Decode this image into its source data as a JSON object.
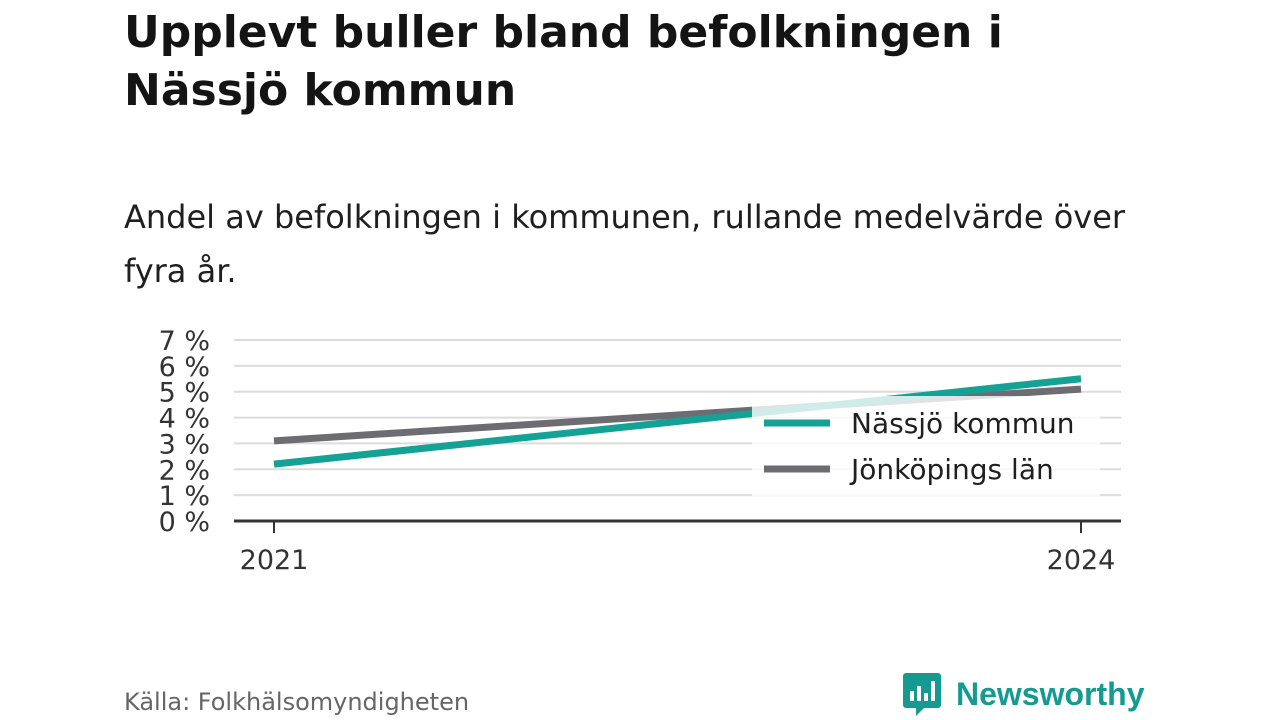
{
  "title": "Upplevt buller bland befolkningen i Nässjö kommun",
  "subtitle": "Andel av befolkningen i kommunen, rullande medelvärde över fyra år.",
  "source": "Källa: Folkhälsomyndigheten",
  "brand": {
    "name": "Newsworthy",
    "icon": "newsworthy-logo-icon",
    "color": "#159a92"
  },
  "chart_data": {
    "type": "line",
    "x": [
      2021,
      2024
    ],
    "xticks": [
      "2021",
      "2024"
    ],
    "ylim": [
      0,
      7
    ],
    "yticks": [
      "0 %",
      "1 %",
      "2 %",
      "3 %",
      "4 %",
      "5 %",
      "6 %",
      "7 %"
    ],
    "grid": true,
    "legend_position": "bottom-right",
    "series": [
      {
        "name": "Nässjö kommun",
        "values": [
          2.2,
          5.5
        ],
        "color": "#14a196"
      },
      {
        "name": "Jönköpings län",
        "values": [
          3.1,
          5.1
        ],
        "color": "#6d6c72"
      }
    ]
  }
}
